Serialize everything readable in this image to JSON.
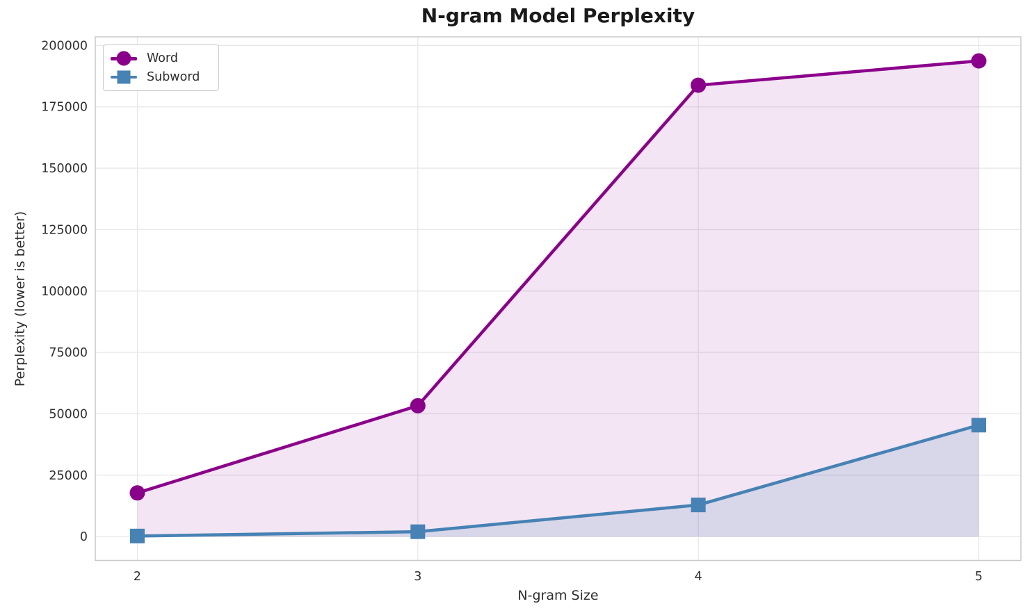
{
  "chart_data": {
    "type": "line",
    "title": "N-gram Model Perplexity",
    "xlabel": "N-gram Size",
    "ylabel": "Perplexity (lower is better)",
    "x": [
      2,
      3,
      4,
      5
    ],
    "series": [
      {
        "name": "Word",
        "color": "#8B008B",
        "marker": "circle",
        "values": [
          17800,
          53300,
          183800,
          193700
        ],
        "fill_opacity": 0.1
      },
      {
        "name": "Subword",
        "color": "#4682B4",
        "marker": "square",
        "values": [
          250,
          2000,
          12900,
          45400
        ],
        "fill_opacity": 0.15
      }
    ],
    "xticks": [
      2,
      3,
      4,
      5
    ],
    "yticks": [
      0,
      25000,
      50000,
      75000,
      100000,
      125000,
      150000,
      175000,
      200000
    ],
    "xlim": [
      1.85,
      5.15
    ],
    "ylim": [
      -9700,
      203500
    ],
    "baseline": 0,
    "grid": true,
    "legend_position": "upper-left",
    "background": "#ffffff",
    "grid_color": "#e7e7e9",
    "spine_color": "#c9c9c9",
    "text_color": "#2e2e2e"
  }
}
